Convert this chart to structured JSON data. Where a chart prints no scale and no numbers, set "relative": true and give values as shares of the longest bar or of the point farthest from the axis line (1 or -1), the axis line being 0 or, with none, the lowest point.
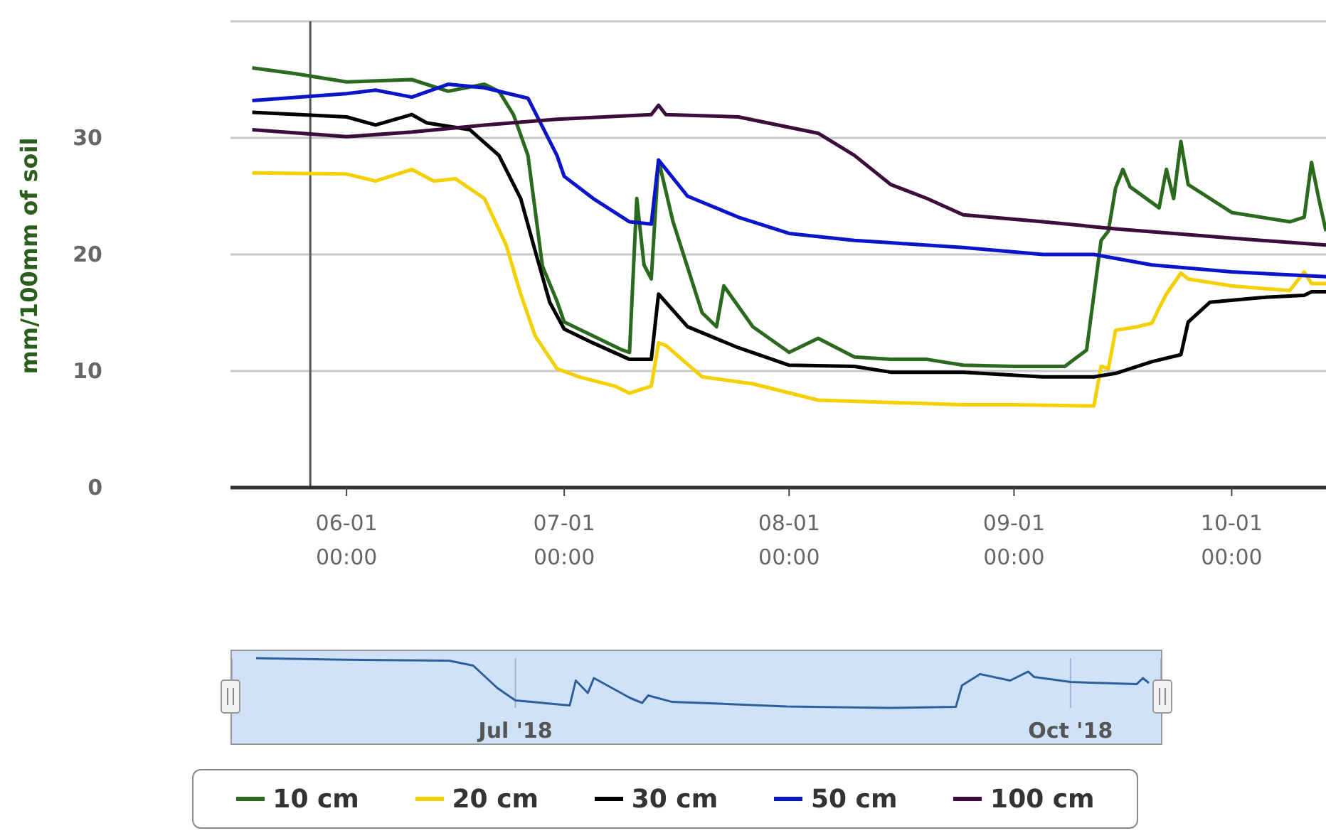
{
  "chart_data": [
    {
      "type": "line",
      "ylabel": "mm/100mm of soil",
      "xlim": [
        "2018-05-16",
        "2018-10-14"
      ],
      "xticks": [
        {
          "value": "2018-06-01",
          "label": "06-01 00:00"
        },
        {
          "value": "2018-07-01",
          "label": "07-01 00:00"
        },
        {
          "value": "2018-08-01",
          "label": "08-01 00:00"
        },
        {
          "value": "2018-09-01",
          "label": "09-01 00:00"
        },
        {
          "value": "2018-10-01",
          "label": "10-01 00:00"
        }
      ],
      "ylim": [
        0,
        40
      ],
      "yticks": [
        0,
        10,
        20,
        30,
        {
          "value": 40,
          "label": null
        }
      ],
      "grid": "y",
      "legend": "bottom",
      "ref_lines": [
        {
          "axis": "x",
          "value": "2018-05-27",
          "color": "#555555"
        }
      ],
      "series": [
        {
          "name": "10 cm",
          "color": "#2b6a1e",
          "x": [
            "2018-05-19",
            "2018-05-25",
            "2018-06-01",
            "2018-06-10",
            "2018-06-15",
            "2018-06-20",
            "2018-06-22",
            "2018-06-24",
            "2018-06-26",
            "2018-06-28",
            "2018-06-30",
            "2018-07-01",
            "2018-07-05",
            "2018-07-09",
            "2018-07-10",
            "2018-07-11",
            "2018-07-12",
            "2018-07-13",
            "2018-07-14",
            "2018-07-16",
            "2018-07-20",
            "2018-07-22",
            "2018-07-23",
            "2018-07-27",
            "2018-08-01",
            "2018-08-05",
            "2018-08-10",
            "2018-08-15",
            "2018-08-20",
            "2018-08-25",
            "2018-09-01",
            "2018-09-08",
            "2018-09-11",
            "2018-09-13",
            "2018-09-14",
            "2018-09-15",
            "2018-09-16",
            "2018-09-17",
            "2018-09-21",
            "2018-09-22",
            "2018-09-23",
            "2018-09-24",
            "2018-09-25",
            "2018-10-01",
            "2018-10-07",
            "2018-10-09",
            "2018-10-11",
            "2018-10-12",
            "2018-10-13",
            "2018-10-14"
          ],
          "values": [
            36,
            35.5,
            34.8,
            35,
            34,
            34.6,
            34,
            32,
            28.5,
            19,
            16,
            14.2,
            13,
            11.8,
            11.6,
            24.8,
            19.1,
            17.9,
            28.1,
            22.8,
            15,
            13.8,
            17.3,
            13.8,
            11.6,
            12.8,
            11.2,
            11,
            11,
            10.5,
            10.4,
            10.4,
            11.8,
            21.2,
            22,
            25.7,
            27.3,
            25.8,
            24,
            27.3,
            24.8,
            29.7,
            26,
            23.6,
            23,
            22.8,
            23.2,
            27.9,
            24.8,
            22
          ]
        },
        {
          "name": "20 cm",
          "color": "#f5d000",
          "x": [
            "2018-05-19",
            "2018-06-01",
            "2018-06-05",
            "2018-06-10",
            "2018-06-13",
            "2018-06-16",
            "2018-06-20",
            "2018-06-23",
            "2018-06-25",
            "2018-06-27",
            "2018-06-30",
            "2018-07-03",
            "2018-07-08",
            "2018-07-10",
            "2018-07-13",
            "2018-07-14",
            "2018-07-15",
            "2018-07-20",
            "2018-07-27",
            "2018-08-05",
            "2018-08-15",
            "2018-08-25",
            "2018-09-01",
            "2018-09-12",
            "2018-09-13",
            "2018-09-14",
            "2018-09-15",
            "2018-09-18",
            "2018-09-20",
            "2018-09-21",
            "2018-09-22",
            "2018-09-24",
            "2018-09-25",
            "2018-10-01",
            "2018-10-09",
            "2018-10-11",
            "2018-10-12",
            "2018-10-14"
          ],
          "values": [
            27,
            26.9,
            26.3,
            27.3,
            26.3,
            26.5,
            24.8,
            20.8,
            16.6,
            13,
            10.2,
            9.5,
            8.7,
            8.1,
            8.7,
            12.4,
            12.2,
            9.5,
            8.9,
            7.5,
            7.3,
            7.1,
            7.1,
            7,
            10.4,
            10.2,
            13.5,
            13.8,
            14.1,
            15.4,
            16.6,
            18.4,
            17.9,
            17.3,
            16.9,
            18.5,
            17.5,
            17.5
          ]
        },
        {
          "name": "30 cm",
          "color": "#000000",
          "x": [
            "2018-05-19",
            "2018-06-01",
            "2018-06-05",
            "2018-06-10",
            "2018-06-12",
            "2018-06-18",
            "2018-06-22",
            "2018-06-25",
            "2018-06-27",
            "2018-06-29",
            "2018-07-01",
            "2018-07-05",
            "2018-07-10",
            "2018-07-13",
            "2018-07-14",
            "2018-07-18",
            "2018-07-25",
            "2018-08-01",
            "2018-08-10",
            "2018-08-15",
            "2018-08-25",
            "2018-09-05",
            "2018-09-12",
            "2018-09-15",
            "2018-09-20",
            "2018-09-24",
            "2018-09-25",
            "2018-09-28",
            "2018-10-05",
            "2018-10-11",
            "2018-10-12",
            "2018-10-14"
          ],
          "values": [
            32.2,
            31.8,
            31.1,
            32,
            31.3,
            30.7,
            28.5,
            24.8,
            20.3,
            15.9,
            13.6,
            12.4,
            11,
            11,
            16.6,
            13.8,
            12,
            10.5,
            10.4,
            9.9,
            9.9,
            9.5,
            9.5,
            9.8,
            10.8,
            11.4,
            14.2,
            15.9,
            16.3,
            16.5,
            16.8,
            16.8
          ]
        },
        {
          "name": "50 cm",
          "color": "#0a14c8",
          "x": [
            "2018-05-19",
            "2018-06-01",
            "2018-06-05",
            "2018-06-10",
            "2018-06-15",
            "2018-06-20",
            "2018-06-26",
            "2018-06-30",
            "2018-07-01",
            "2018-07-05",
            "2018-07-10",
            "2018-07-13",
            "2018-07-14",
            "2018-07-18",
            "2018-07-25",
            "2018-08-01",
            "2018-08-10",
            "2018-08-15",
            "2018-08-25",
            "2018-09-05",
            "2018-09-12",
            "2018-09-20",
            "2018-10-01",
            "2018-10-14"
          ],
          "values": [
            33.2,
            33.8,
            34.1,
            33.5,
            34.6,
            34.3,
            33.4,
            28.5,
            26.7,
            24.8,
            22.8,
            22.6,
            28.1,
            25,
            23.2,
            21.8,
            21.2,
            21,
            20.6,
            20,
            20,
            19.1,
            18.5,
            18.1
          ]
        },
        {
          "name": "100 cm",
          "color": "#3c0d3c",
          "x": [
            "2018-05-19",
            "2018-06-01",
            "2018-06-10",
            "2018-06-20",
            "2018-06-30",
            "2018-07-13",
            "2018-07-14",
            "2018-07-15",
            "2018-07-25",
            "2018-08-05",
            "2018-08-10",
            "2018-08-15",
            "2018-08-20",
            "2018-08-25",
            "2018-09-05",
            "2018-09-15",
            "2018-10-01",
            "2018-10-14"
          ],
          "values": [
            30.7,
            30.1,
            30.5,
            31.1,
            31.6,
            32,
            32.8,
            32,
            31.8,
            30.4,
            28.5,
            26,
            24.8,
            23.4,
            22.8,
            22.2,
            21.4,
            20.8
          ]
        }
      ]
    },
    {
      "type": "line",
      "relative": true,
      "xlim": [
        "2018-05-15",
        "2018-10-16"
      ],
      "xticks": [
        {
          "value": "2018-07-01",
          "label": "Jul '18"
        },
        {
          "value": "2018-10-01",
          "label": "Oct '18"
        }
      ],
      "grid": "x",
      "bands": [
        {
          "axis": "x",
          "from": "2018-05-15",
          "to": "2018-10-16",
          "color": "#cfe2f7"
        }
      ],
      "series": [
        {
          "color": "#2f5f9a",
          "x": [
            "2018-05-19",
            "2018-06-01",
            "2018-06-20",
            "2018-06-24",
            "2018-06-28",
            "2018-07-01",
            "2018-07-10",
            "2018-07-11",
            "2018-07-13",
            "2018-07-14",
            "2018-07-20",
            "2018-07-22",
            "2018-07-23",
            "2018-07-27",
            "2018-08-05",
            "2018-08-15",
            "2018-09-01",
            "2018-09-12",
            "2018-09-13",
            "2018-09-16",
            "2018-09-21",
            "2018-09-24",
            "2018-09-25",
            "2018-10-01",
            "2018-10-12",
            "2018-10-13",
            "2018-10-14"
          ],
          "values": [
            1,
            0.97,
            0.95,
            0.85,
            0.4,
            0.15,
            0.05,
            0.55,
            0.3,
            0.6,
            0.2,
            0.1,
            0.25,
            0.12,
            0.08,
            0.03,
            0,
            0.02,
            0.45,
            0.68,
            0.55,
            0.73,
            0.62,
            0.52,
            0.48,
            0.6,
            0.5
          ]
        }
      ]
    }
  ]
}
